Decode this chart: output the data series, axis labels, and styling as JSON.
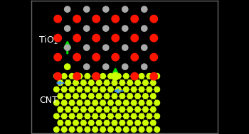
{
  "bg_color": "#000000",
  "tio2_label": "TiO$_2$",
  "cnt_label": "CNT",
  "label_color": "#ffffff",
  "label_fontsize": 9,
  "ti_color": "#aaaaaa",
  "o_color": "#ff1500",
  "c_color": "#ccff00",
  "highlight_color": "#ccff00",
  "green_arrow_color": "#00dd00",
  "blue_arrow_color": "#4499ff",
  "bond_color_tio2": "#888888",
  "bond_color_cnt": "#888800",
  "border_color": "#666666",
  "fig_width": 3.5,
  "fig_height": 1.89,
  "dpi": 100,
  "xlim": [
    0,
    14
  ],
  "ylim": [
    0,
    10
  ]
}
